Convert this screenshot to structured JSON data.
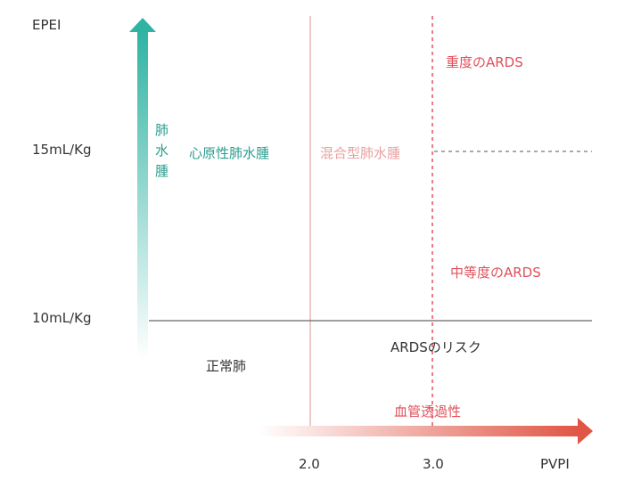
{
  "y_axis": {
    "title": "EPEI",
    "levels": [
      "15mL/Kg",
      "10mL/Kg"
    ],
    "arrow_label": "肺水腫"
  },
  "x_axis": {
    "title": "PVPI",
    "levels": [
      "2.0",
      "3.0"
    ],
    "arrow_label": "血管透過性"
  },
  "regions": {
    "cardiogenic": "心原性肺水腫",
    "mixed": "混合型肺水腫",
    "severe_ards": "重度のARDS",
    "moderate_ards": "中等度のARDS",
    "ards_risk": "ARDSのリスク",
    "normal": "正常肺"
  }
}
